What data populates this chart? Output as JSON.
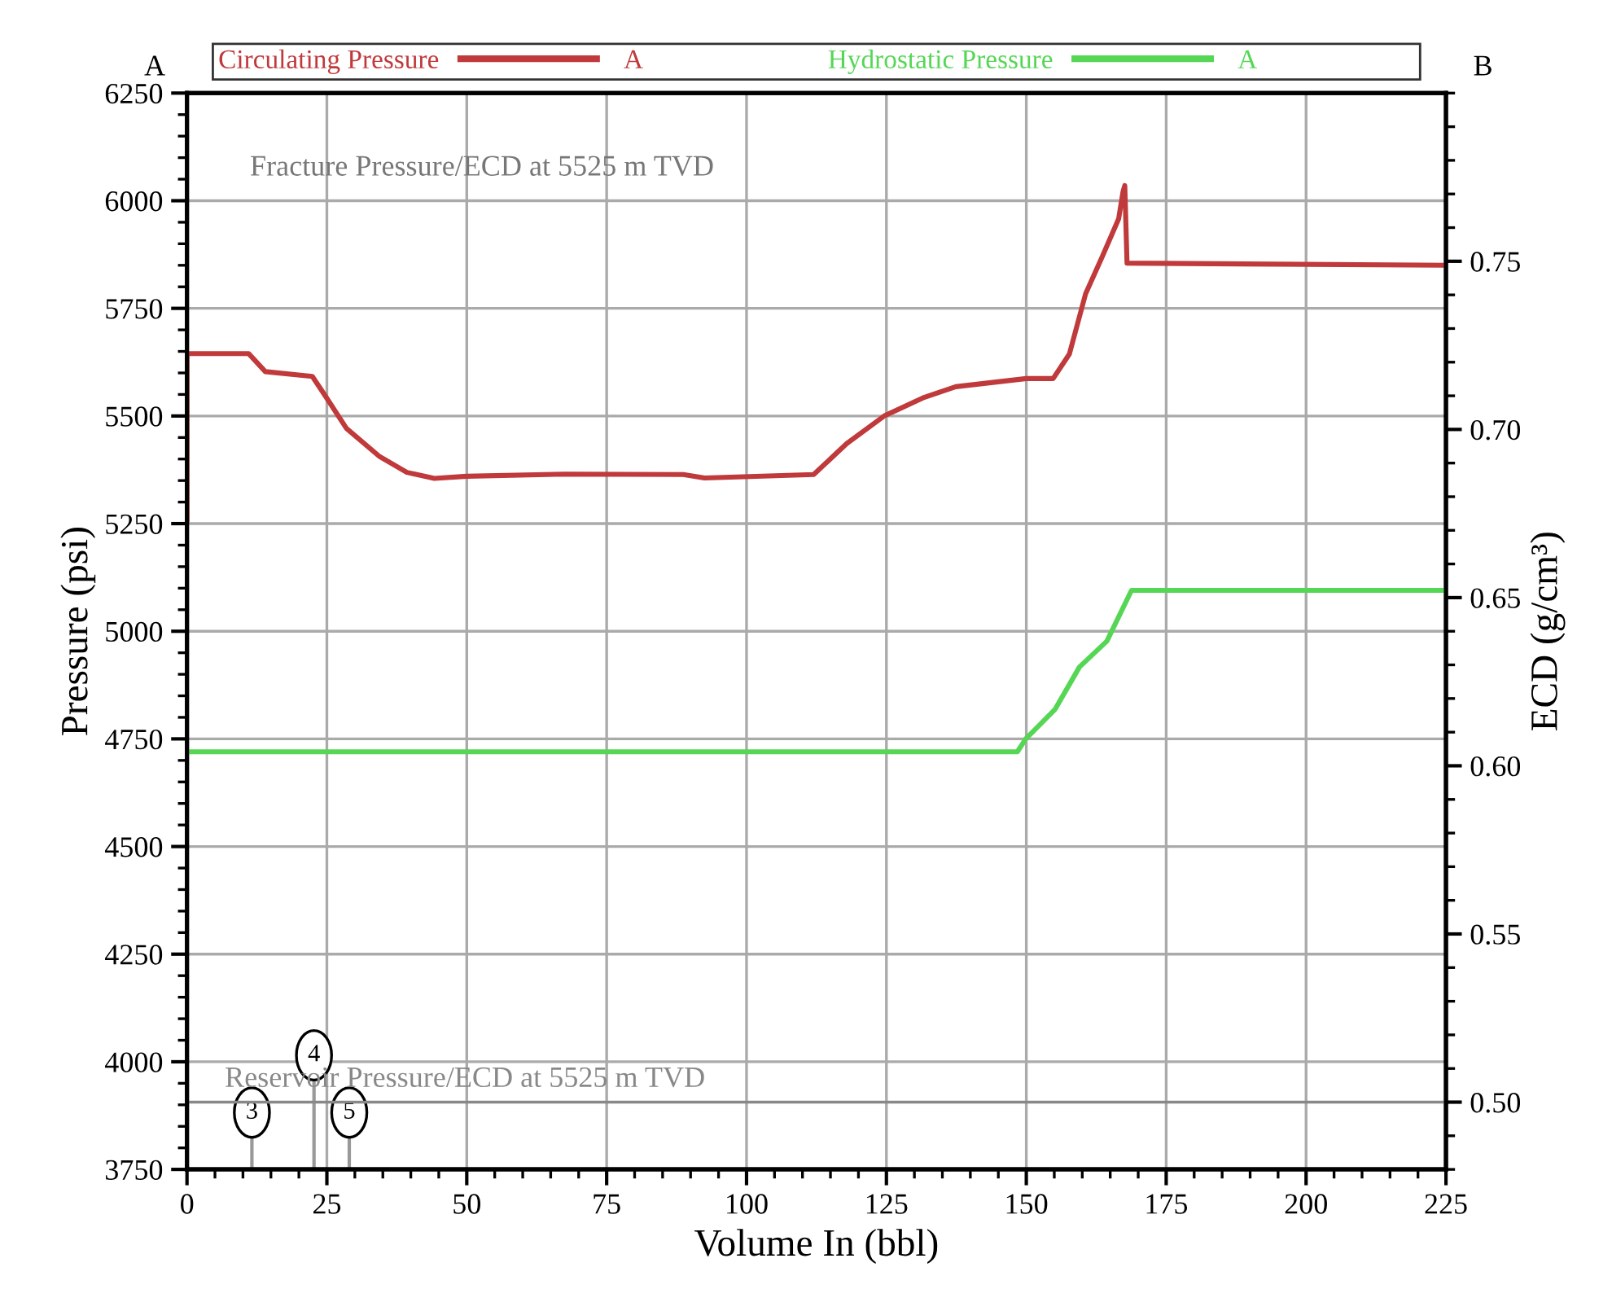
{
  "chart_data": {
    "type": "line",
    "xlabel": "Volume In (bbl)",
    "ylabel": "Pressure (psi)",
    "y2label": "ECD (g/cm³)",
    "xlim": [
      0,
      225
    ],
    "xticks": [
      0,
      25,
      50,
      75,
      100,
      125,
      150,
      175,
      200,
      225
    ],
    "ylim": [
      3750,
      6250
    ],
    "yticks": [
      3750,
      4000,
      4250,
      4500,
      4750,
      5000,
      5250,
      5500,
      5750,
      6000,
      6250
    ],
    "y2lim": [
      0.48,
      0.8
    ],
    "y2ticks": [
      {
        "value": 0.5,
        "label": "0.50"
      },
      {
        "value": 0.55,
        "label": "0.55"
      },
      {
        "value": 0.6,
        "label": "0.60"
      },
      {
        "value": 0.65,
        "label": "0.65"
      },
      {
        "value": 0.7,
        "label": "0.70"
      },
      {
        "value": 0.75,
        "label": "0.75"
      }
    ],
    "grid": true,
    "legend": "top",
    "line_style": "solid",
    "series": [
      {
        "name": "Circulating Pressure",
        "color": "#c0393b",
        "x": [
          0,
          0,
          11,
          14,
          22.4,
          24.7,
          28.5,
          34.3,
          39.3,
          44.2,
          50,
          67.5,
          88.7,
          92.5,
          112,
          117.9,
          124.6,
          131.5,
          137.4,
          150,
          154.8,
          157.7,
          160.6,
          163.6,
          166.5,
          167.3,
          167.6,
          168,
          225
        ],
        "values": [
          5260,
          5645,
          5645,
          5603,
          5592,
          5547,
          5471,
          5407,
          5369,
          5355,
          5360,
          5365,
          5364,
          5356,
          5364,
          5436,
          5500,
          5542,
          5568,
          5587,
          5587,
          5644,
          5784,
          5871,
          5958,
          6022,
          6035,
          5855,
          5850
        ]
      },
      {
        "name": "Hydrostatic Pressure",
        "color": "#55d655",
        "x": [
          0,
          148.4,
          149.9,
          155.1,
          159.5,
          164.4,
          168.8,
          225
        ],
        "values": [
          4720,
          4720,
          4750,
          4818,
          4917,
          4977,
          5095,
          5095
        ]
      }
    ],
    "ref_lines": [
      {
        "axis": "y2",
        "value": 0.5,
        "label": "Reservoir Pressure/ECD at 5525 m TVD",
        "color": "#888888"
      }
    ],
    "annotations": [
      "A",
      "B",
      "Fracture Pressure/ECD at 5525 m TVD",
      {
        "text": "3",
        "x": 11.6,
        "y": 3882
      },
      {
        "text": "4",
        "x": 22.7,
        "y": 4015
      },
      {
        "text": "5",
        "x": 29,
        "y": 3882
      }
    ]
  }
}
